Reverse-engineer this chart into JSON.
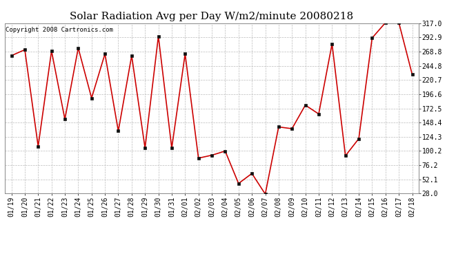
{
  "title": "Solar Radiation Avg per Day W/m2/minute 20080218",
  "copyright": "Copyright 2008 Cartronics.com",
  "labels": [
    "01/19",
    "01/20",
    "01/21",
    "01/22",
    "01/23",
    "01/24",
    "01/25",
    "01/26",
    "01/27",
    "01/28",
    "01/29",
    "01/30",
    "01/31",
    "02/01",
    "02/02",
    "02/03",
    "02/04",
    "02/05",
    "02/06",
    "02/07",
    "02/08",
    "02/09",
    "02/10",
    "02/11",
    "02/12",
    "02/13",
    "02/14",
    "02/15",
    "02/16",
    "02/17",
    "02/18"
  ],
  "values": [
    262,
    272,
    108,
    270,
    154,
    275,
    190,
    265,
    134,
    262,
    105,
    295,
    105,
    265,
    88,
    93,
    100,
    45,
    62,
    27,
    141,
    138,
    178,
    163,
    282,
    92,
    121,
    292,
    318,
    318,
    230
  ],
  "y_ticks": [
    28.0,
    52.1,
    76.2,
    100.2,
    124.3,
    148.4,
    172.5,
    196.6,
    220.7,
    244.8,
    268.8,
    292.9,
    317.0
  ],
  "line_color": "#cc0000",
  "marker_color": "#111111",
  "bg_color": "#ffffff",
  "grid_color": "#bbbbbb",
  "title_fontsize": 11,
  "tick_fontsize": 7,
  "copyright_fontsize": 6.5,
  "ylim_min": 28.0,
  "ylim_max": 317.0
}
